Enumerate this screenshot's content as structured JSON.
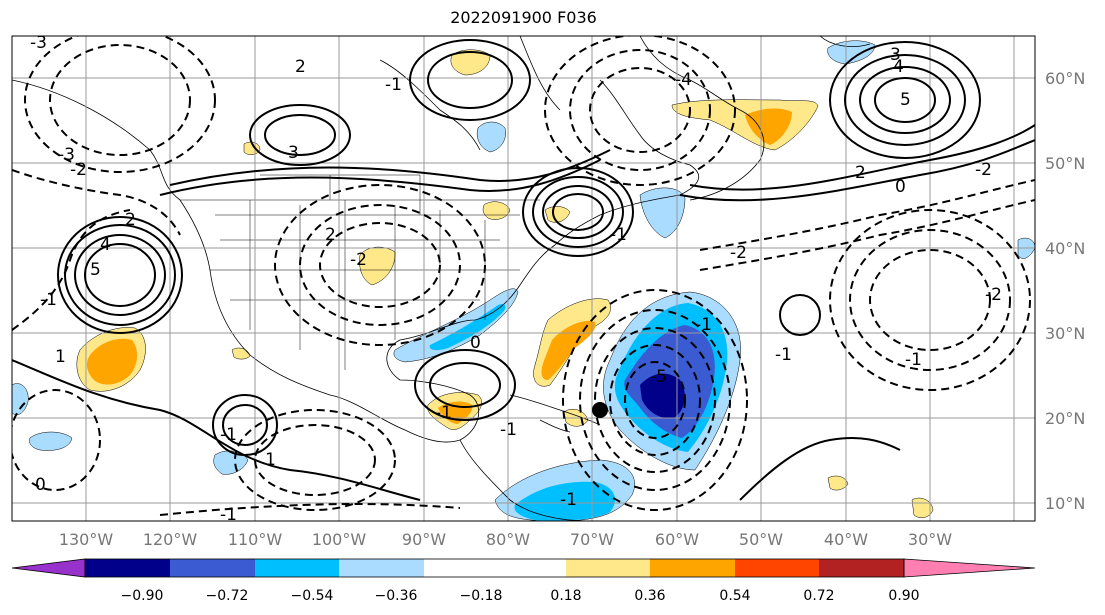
{
  "title": "2022091900 F036",
  "axes": {
    "lon_labels": [
      "130°W",
      "120°W",
      "110°W",
      "100°W",
      "90°W",
      "80°W",
      "70°W",
      "60°W",
      "50°W",
      "40°W",
      "30°W"
    ],
    "lat_labels": [
      "60°N",
      "50°N",
      "40°N",
      "30°N",
      "20°N",
      "10°N"
    ],
    "lon_range": [
      -138,
      -17
    ],
    "lat_range": [
      8,
      65
    ],
    "grid": true
  },
  "colorbar": {
    "tick_labels": [
      "−0.90",
      "−0.72",
      "−0.54",
      "−0.36",
      "−0.18",
      "0.18",
      "0.36",
      "0.54",
      "0.72",
      "0.90"
    ],
    "colors": [
      "#9932cc",
      "#00008b",
      "#3a5bd1",
      "#00bfff",
      "#aadcff",
      "#ffffff",
      "#ffe88a",
      "#ffa500",
      "#ff4500",
      "#b22222",
      "#ff80b0"
    ],
    "extend": "both"
  },
  "contour_labels": {
    "solid": [
      "-3",
      "2",
      "-1",
      "1",
      "-3",
      "2",
      "2",
      "5",
      "4",
      "1",
      "-1",
      "3",
      "-4",
      "4",
      "3",
      "5",
      "-5",
      "-1",
      "0",
      "-2",
      "-2",
      "-2",
      "-2",
      "-1",
      "-1",
      "0",
      "-1",
      "2",
      "-1",
      "-2",
      "-1",
      "-1",
      "-1",
      "0",
      "-1"
    ],
    "dashed": []
  },
  "marker": {
    "label": "storm center",
    "lat": 21,
    "lon": -71.5,
    "color": "#000000"
  }
}
